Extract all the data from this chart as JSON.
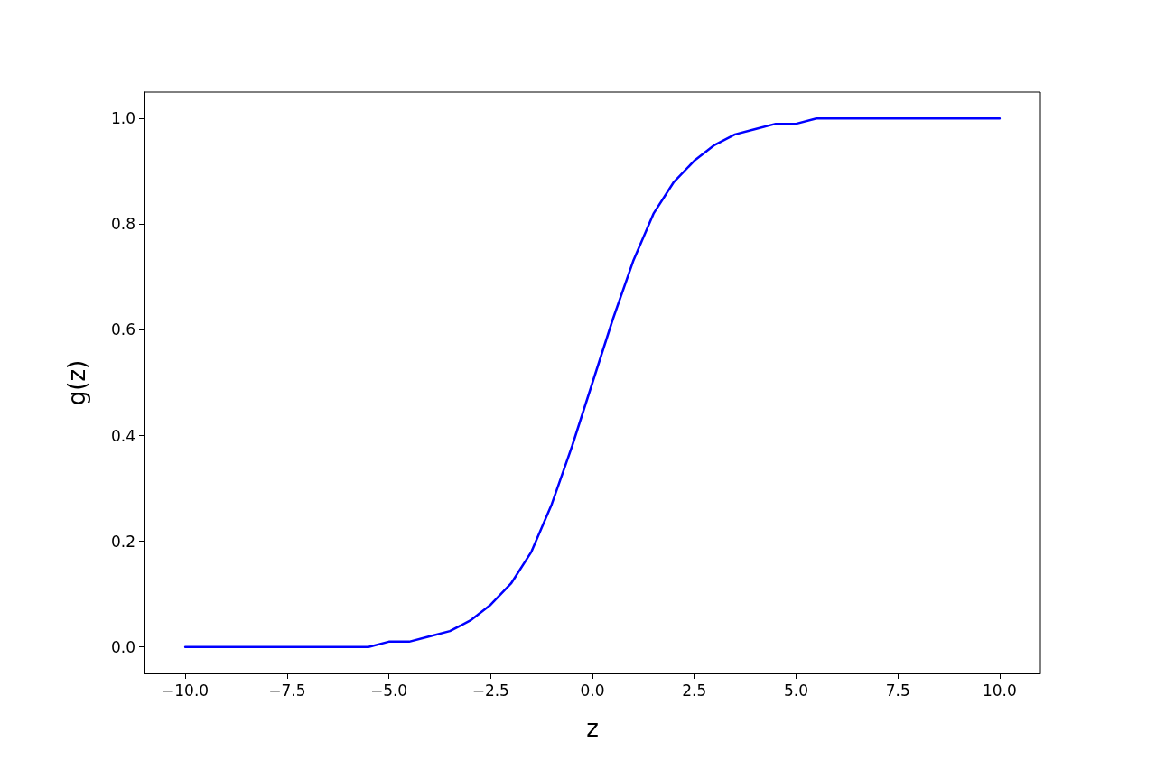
{
  "chart_data": {
    "type": "line",
    "xlabel": "z",
    "ylabel": "g(z)",
    "x": [
      -10,
      -9.5,
      -9,
      -8.5,
      -8,
      -7.5,
      -7,
      -6.5,
      -6,
      -5.5,
      -5,
      -4.5,
      -4,
      -3.5,
      -3,
      -2.5,
      -2,
      -1.5,
      -1,
      -0.5,
      0,
      0.5,
      1,
      1.5,
      2,
      2.5,
      3,
      3.5,
      4,
      4.5,
      5,
      5.5,
      6,
      6.5,
      7,
      7.5,
      8,
      8.5,
      9,
      9.5,
      10
    ],
    "series": [
      {
        "color": "#0000ff",
        "values": [
          0,
          0,
          0,
          0,
          0,
          0,
          0,
          0,
          0,
          0,
          0.01,
          0.01,
          0.02,
          0.03,
          0.05,
          0.08,
          0.12,
          0.18,
          0.27,
          0.38,
          0.5,
          0.62,
          0.73,
          0.82,
          0.88,
          0.92,
          0.95,
          0.97,
          0.98,
          0.99,
          0.99,
          1,
          1,
          1,
          1,
          1,
          1,
          1,
          1,
          1,
          1
        ]
      }
    ],
    "xlim": [
      -11,
      11
    ],
    "xticks": [
      {
        "value": -10,
        "label": "−10.0"
      },
      {
        "value": -7.5,
        "label": "−7.5"
      },
      {
        "value": -5,
        "label": "−5.0"
      },
      {
        "value": -2.5,
        "label": "−2.5"
      },
      {
        "value": 0,
        "label": "0.0"
      },
      {
        "value": 2.5,
        "label": "2.5"
      },
      {
        "value": 5,
        "label": "5.0"
      },
      {
        "value": 7.5,
        "label": "7.5"
      },
      {
        "value": 10,
        "label": "10.0"
      }
    ],
    "ylim": [
      -0.05,
      1.05
    ],
    "yticks": [
      {
        "value": 0,
        "label": "0.0"
      },
      {
        "value": 0.2,
        "label": "0.2"
      },
      {
        "value": 0.4,
        "label": "0.4"
      },
      {
        "value": 0.6,
        "label": "0.6"
      },
      {
        "value": 0.8,
        "label": "0.8"
      },
      {
        "value": 1,
        "label": "1.0"
      }
    ]
  }
}
